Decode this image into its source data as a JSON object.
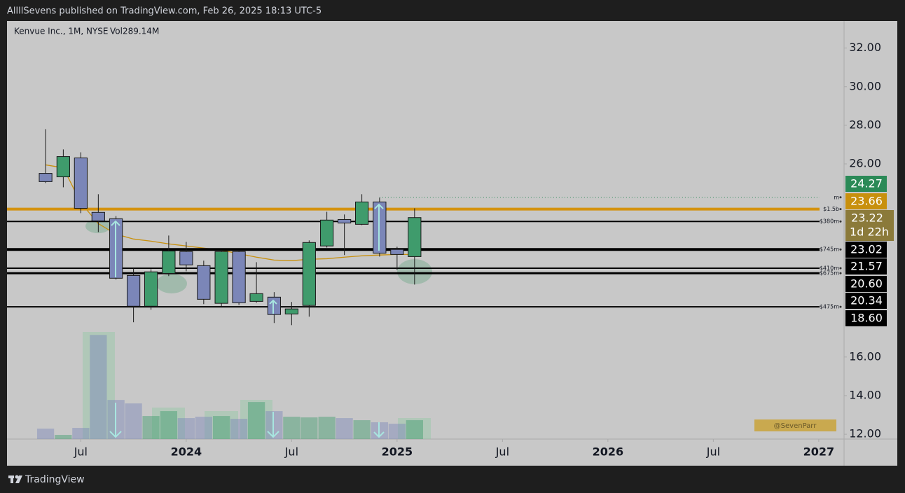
{
  "page": {
    "byline": "AllllSevens published on TradingView.com, Feb 26, 2025 18:13 UTC-5",
    "brand": "TradingView"
  },
  "chart_data": {
    "type": "candlestick",
    "title": "Kenvue Inc., 1M, NYSE",
    "volume_label": "Vol289.14M",
    "watermark": "@SevenParr",
    "countdown": "1d 22h",
    "x": [
      2023.333,
      2023.417,
      2023.5,
      2023.583,
      2023.667,
      2023.75,
      2023.833,
      2023.917,
      2024,
      2024.083,
      2024.167,
      2024.25,
      2024.333,
      2024.417,
      2024.5,
      2024.583,
      2024.667,
      2024.75,
      2024.833,
      2024.917,
      2025,
      2025.083
    ],
    "open": [
      25.51,
      25.33,
      26.31,
      23.49,
      23.16,
      20.22,
      18.63,
      20.33,
      21.46,
      20.73,
      18.78,
      21.46,
      18.88,
      19.1,
      18.23,
      18.67,
      21.75,
      23.12,
      22.87,
      24.03,
      21.57,
      21.2
    ],
    "high": [
      27.8,
      26.75,
      26.6,
      24.43,
      23.3,
      20.59,
      20.55,
      22.29,
      21.96,
      20.99,
      21.53,
      21.53,
      20.91,
      19.36,
      18.85,
      22.04,
      23.52,
      23.38,
      24.43,
      24.25,
      21.71,
      23.7
    ],
    "low": [
      25.01,
      24.79,
      23.45,
      22.47,
      20.01,
      17.8,
      18.45,
      20.19,
      20.44,
      18.74,
      18.63,
      18.7,
      18.81,
      17.76,
      17.65,
      18.09,
      21.67,
      21.28,
      22.83,
      21.2,
      20.51,
      19.75
    ],
    "close": [
      25.08,
      26.38,
      23.7,
      23.05,
      20.08,
      18.63,
      20.41,
      21.49,
      20.77,
      18.99,
      21.46,
      18.81,
      19.28,
      18.2,
      18.49,
      21.93,
      23.09,
      22.94,
      24.03,
      21.38,
      21.31,
      23.22
    ],
    "volume": [
      160,
      64,
      171,
      1594,
      599,
      546,
      353,
      428,
      321,
      342,
      353,
      310,
      567,
      428,
      342,
      332,
      342,
      321,
      289,
      257,
      235,
      289.14
    ],
    "volume_lim": [
      0,
      6400
    ],
    "ma": [
      25.95,
      25.8,
      23.99,
      22.91,
      22.36,
      22.11,
      22.0,
      21.86,
      21.75,
      21.64,
      21.53,
      21.35,
      21.17,
      21.02,
      20.99,
      21.06,
      21.09,
      21.17,
      21.24,
      21.28,
      21.31,
      21.31
    ],
    "ma_color": "#c8900d",
    "up_color": "#3f9b6c",
    "down_color": "#7b86b8",
    "xlim": [
      2023.15,
      2027.12
    ],
    "xticks": [
      {
        "value": 2023.5,
        "label": "Jul"
      },
      2024,
      {
        "value": 2024.5,
        "label": "Jul"
      },
      2025,
      {
        "value": 2025.5,
        "label": "Jul"
      },
      2026,
      {
        "value": 2026.5,
        "label": "Jul"
      },
      2027
    ],
    "ylim": [
      11.75,
      33.4
    ],
    "yticks": [
      {
        "value": 32,
        "label": "32.00"
      },
      {
        "value": 30,
        "label": "30.00"
      },
      {
        "value": 28,
        "label": "28.00"
      },
      {
        "value": 26,
        "label": "26.00"
      },
      {
        "value": 16,
        "label": "16.00"
      },
      {
        "value": 14,
        "label": "14.00"
      },
      {
        "value": 12,
        "label": "12.00"
      }
    ],
    "levels": [
      {
        "value": 24.27,
        "label": "m",
        "color": "#2b8a57",
        "box_color": "#2b8a57",
        "width": 1,
        "style": "dotted",
        "x_from": 2024.917
      },
      {
        "value": 23.66,
        "label": "$1.5b",
        "color": "#d4920f",
        "box_color": "#c8900d",
        "width": 4
      },
      {
        "value": 23.02,
        "label": "$380m",
        "color": "#000000",
        "box_color": "#000000",
        "width": 2
      },
      {
        "value": 21.57,
        "label": "$745m",
        "color": "#000000",
        "box_color": "#000000",
        "width": 4
      },
      {
        "value": 20.6,
        "value_label": "20.60",
        "label": "$410m",
        "color": "#000000",
        "box_color": "#000000",
        "width": 2
      },
      {
        "value": 20.34,
        "label": "$675m",
        "color": "#000000",
        "box_color": "#000000",
        "width": 3
      },
      {
        "value": 18.6,
        "value_label": "18.60",
        "label": "$475m",
        "color": "#000000",
        "box_color": "#000000",
        "width": 2
      }
    ],
    "current_box_color": "#8b7a3a"
  }
}
